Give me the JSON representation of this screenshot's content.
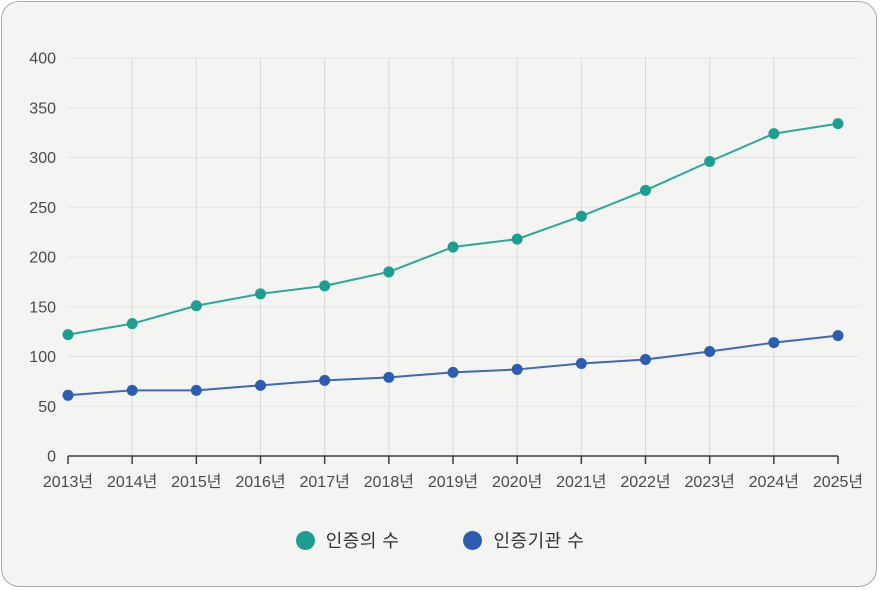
{
  "panel": {
    "background": "#f4f4f2",
    "border_color": "#aaaaa7"
  },
  "chart_data": {
    "type": "line",
    "categories": [
      "2013년",
      "2014년",
      "2015년",
      "2016년",
      "2017년",
      "2018년",
      "2019년",
      "2020년",
      "2021년",
      "2022년",
      "2023년",
      "2024년",
      "2025년"
    ],
    "series": [
      {
        "name": "인증의 수",
        "line_color": "#2aa79a",
        "point_color": "#1d9e90",
        "values": [
          122,
          133,
          151,
          163,
          171,
          185,
          210,
          218,
          241,
          267,
          296,
          324,
          334
        ]
      },
      {
        "name": "인증기관 수",
        "line_color": "#3f68b6",
        "point_color": "#2d5cb0",
        "values": [
          61,
          66,
          66,
          71,
          76,
          79,
          84,
          87,
          93,
          97,
          105,
          114,
          121
        ]
      }
    ],
    "title": "",
    "xlabel": "",
    "ylabel": "",
    "ylim": [
      0,
      400
    ],
    "yticks": [
      0,
      50,
      100,
      150,
      200,
      250,
      300,
      350,
      400
    ],
    "grid": true,
    "legend_position": "bottom",
    "axis_color": "#3f3f3f",
    "grid_color_h": "#e3e3e0",
    "grid_color_v": "#d9d9d6",
    "tick_label_color": "#4a4a4a"
  },
  "legend": {
    "items": [
      {
        "label": "인증의 수",
        "color": "#1d9e90"
      },
      {
        "label": "인증기관 수",
        "color": "#2d5cb0"
      }
    ]
  }
}
